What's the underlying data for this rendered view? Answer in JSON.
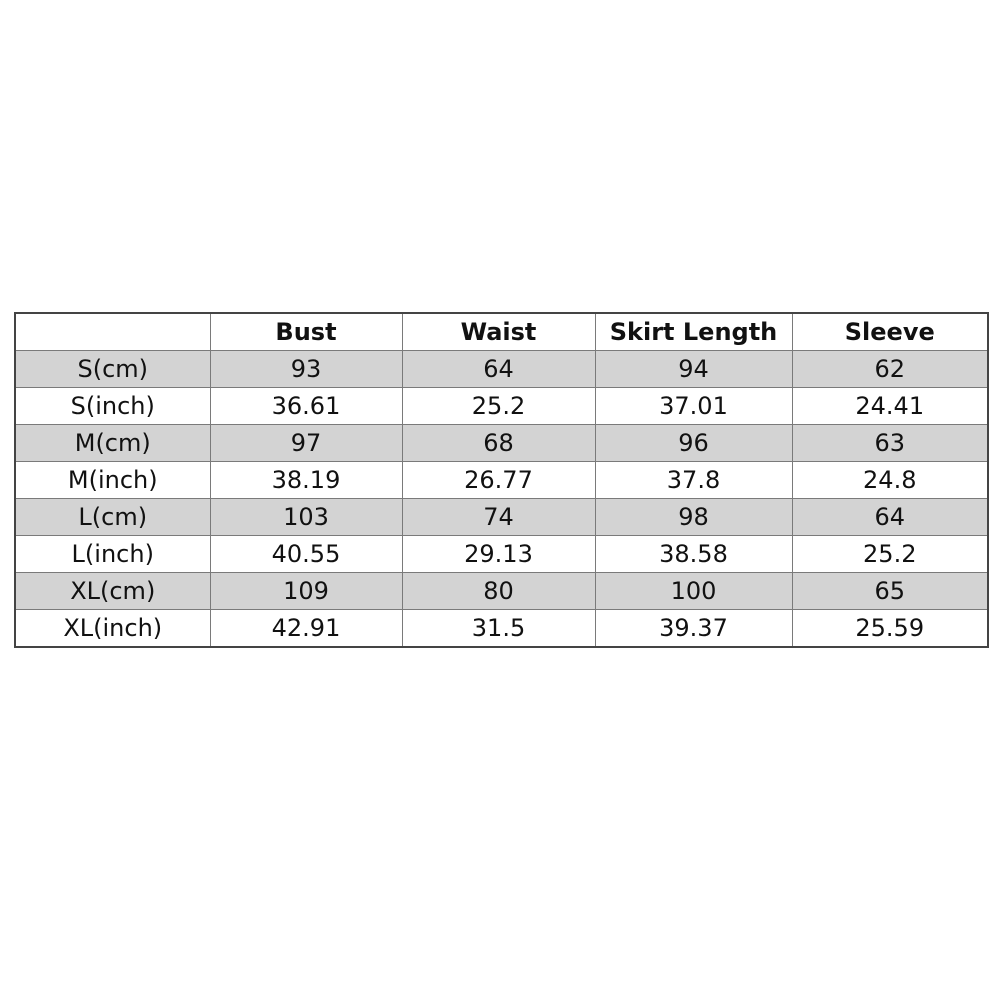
{
  "table": {
    "headers": [
      "",
      "Bust",
      "Waist",
      "Skirt Length",
      "Sleeve"
    ],
    "rows": [
      [
        "S(cm)",
        "93",
        "64",
        "94",
        "62"
      ],
      [
        "S(inch)",
        "36.61",
        "25.2",
        "37.01",
        "24.41"
      ],
      [
        "M(cm)",
        "97",
        "68",
        "96",
        "63"
      ],
      [
        "M(inch)",
        "38.19",
        "26.77",
        "37.8",
        "24.8"
      ],
      [
        "L(cm)",
        "103",
        "74",
        "98",
        "64"
      ],
      [
        "L(inch)",
        "40.55",
        "29.13",
        "38.58",
        "25.2"
      ],
      [
        "XL(cm)",
        "109",
        "80",
        "100",
        "65"
      ],
      [
        "XL(inch)",
        "42.91",
        "31.5",
        "39.37",
        "25.59"
      ]
    ],
    "shade_color": "#d3d3d3"
  }
}
